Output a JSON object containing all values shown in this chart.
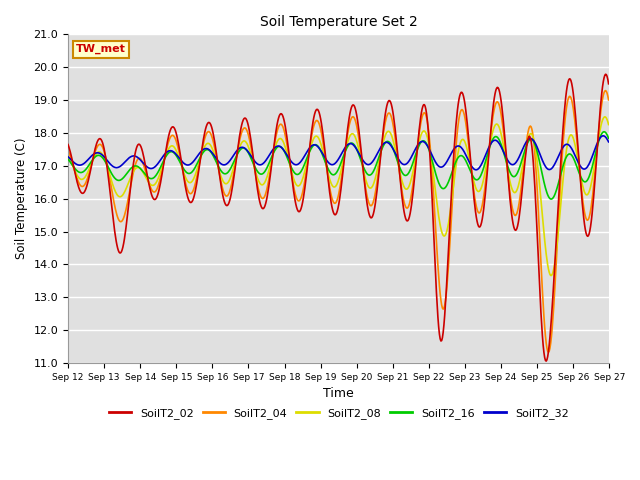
{
  "title": "Soil Temperature Set 2",
  "xlabel": "Time",
  "ylabel": "Soil Temperature (C)",
  "ylim": [
    11.0,
    21.0
  ],
  "yticks": [
    11.0,
    12.0,
    13.0,
    14.0,
    15.0,
    16.0,
    17.0,
    18.0,
    19.0,
    20.0,
    21.0
  ],
  "bg_color": "#e0e0e0",
  "series_colors": {
    "SoilT2_02": "#cc0000",
    "SoilT2_04": "#ff8800",
    "SoilT2_08": "#dddd00",
    "SoilT2_16": "#00cc00",
    "SoilT2_32": "#0000cc"
  },
  "annotation_text": "TW_met",
  "annotation_bg": "#ffffcc",
  "annotation_border": "#cc8800",
  "num_days": 15,
  "start_day": 12,
  "points_per_day": 48
}
